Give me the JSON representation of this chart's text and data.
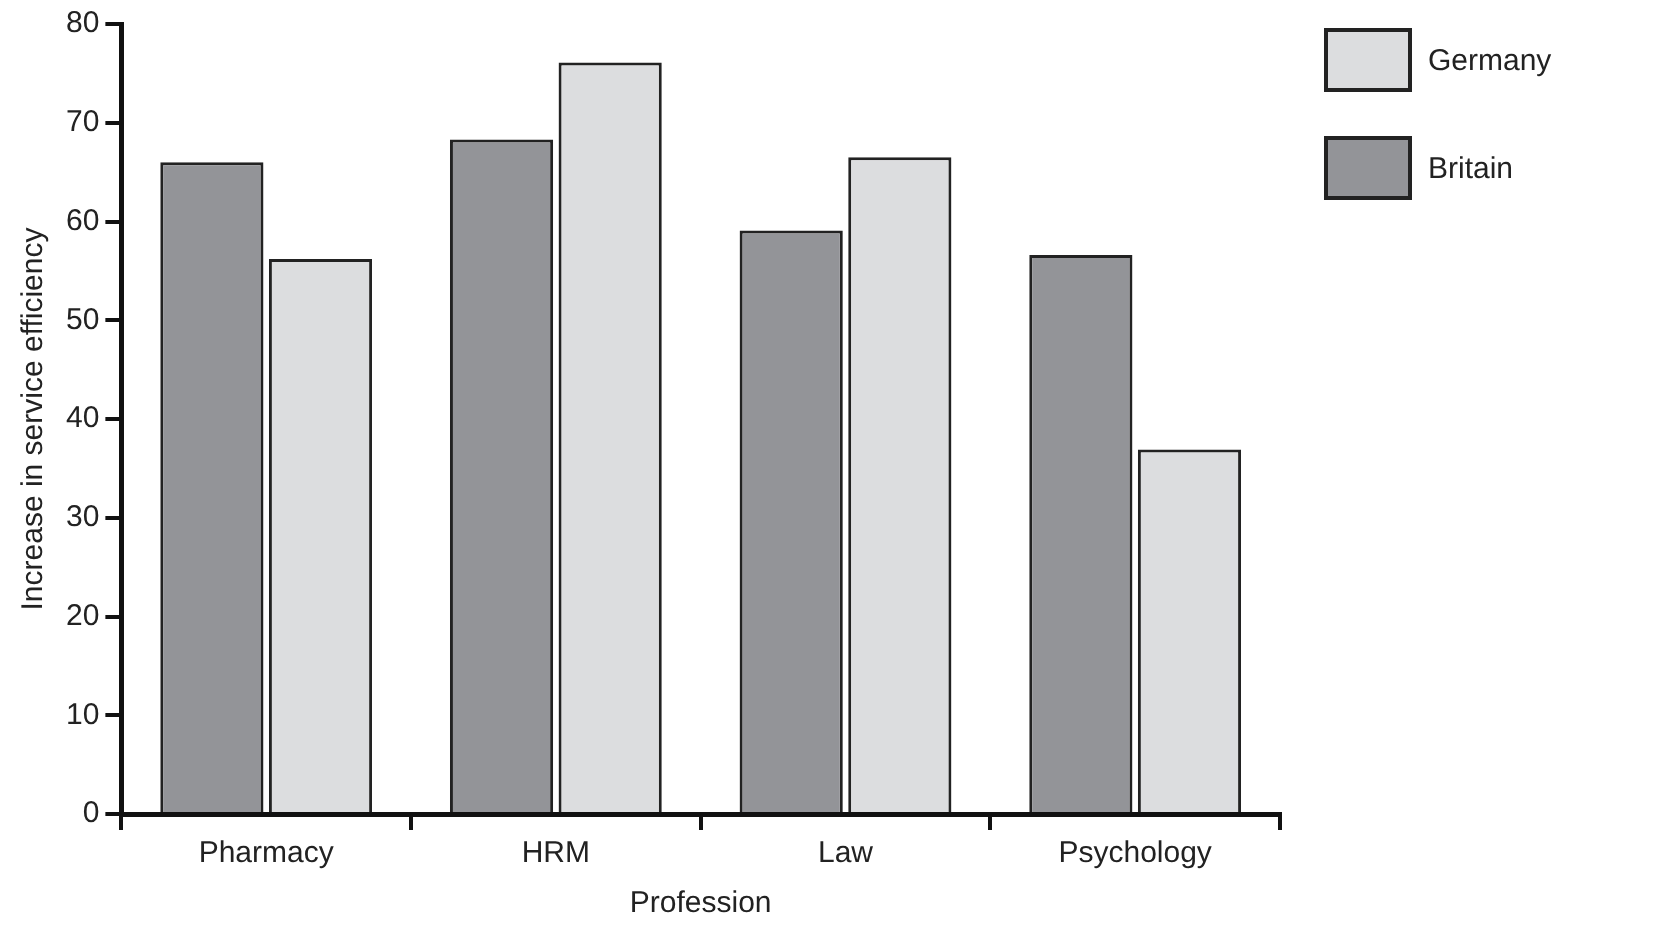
{
  "chart_data": {
    "type": "bar",
    "xlabel": "Profession",
    "ylabel": "Increase in service efficiency",
    "categories": [
      "Pharmacy",
      "HRM",
      "Law",
      "Psychology"
    ],
    "series": [
      {
        "name": "Britain",
        "color": "#939498",
        "values": [
          66,
          68.3,
          59.1,
          56.6
        ]
      },
      {
        "name": "Germany",
        "color": "#dcdddf",
        "values": [
          56.2,
          76.1,
          66.5,
          36.9
        ]
      }
    ],
    "ylim": [
      0,
      80
    ],
    "yticks": [
      0,
      10,
      20,
      30,
      40,
      50,
      60,
      70,
      80
    ],
    "grid": false,
    "legend": "top right"
  }
}
